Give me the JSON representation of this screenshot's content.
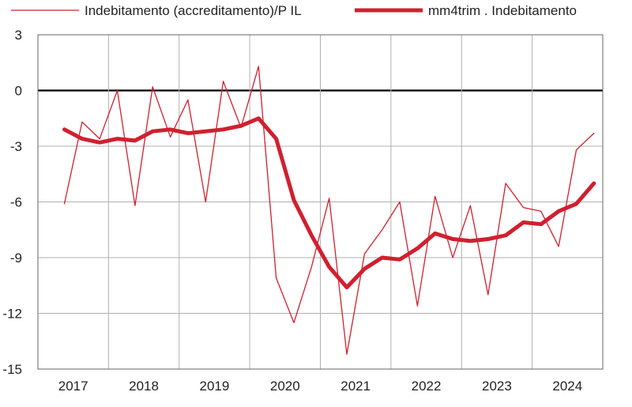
{
  "chart_data": {
    "type": "line",
    "title": "",
    "xlabel": "",
    "ylabel": "",
    "ylim": [
      -15,
      3
    ],
    "yticks": [
      3,
      0,
      -3,
      -6,
      -9,
      -12,
      -15
    ],
    "year_labels": [
      "2017",
      "2018",
      "2019",
      "2020",
      "2021",
      "2022",
      "2023",
      "2024"
    ],
    "grid": true,
    "legend_position": "top",
    "colors": {
      "series": "#d0202f",
      "zero_line": "#000000",
      "grid": "#b0b0b0",
      "frame": "#666666"
    },
    "x": [
      "2017-Q1",
      "2017-Q2",
      "2017-Q3",
      "2017-Q4",
      "2018-Q1",
      "2018-Q2",
      "2018-Q3",
      "2018-Q4",
      "2019-Q1",
      "2019-Q2",
      "2019-Q3",
      "2019-Q4",
      "2020-Q1",
      "2020-Q2",
      "2020-Q3",
      "2020-Q4",
      "2021-Q1",
      "2021-Q2",
      "2021-Q3",
      "2021-Q4",
      "2022-Q1",
      "2022-Q2",
      "2022-Q3",
      "2022-Q4",
      "2023-Q1",
      "2023-Q2",
      "2023-Q3",
      "2023-Q4",
      "2024-Q1",
      "2024-Q2",
      "2024-Q3"
    ],
    "series": [
      {
        "name": "Indebitamento (accreditamento)/P IL",
        "values": [
          -6.1,
          -1.7,
          -2.6,
          0.0,
          -6.2,
          0.2,
          -2.5,
          -0.5,
          -6.0,
          0.5,
          -2.0,
          1.3,
          -10.1,
          -12.5,
          -9.5,
          -5.8,
          -14.2,
          -8.8,
          -7.5,
          -6.0,
          -11.6,
          -5.7,
          -9.0,
          -6.2,
          -11.0,
          -5.0,
          -6.3,
          -6.5,
          -8.4,
          -3.2,
          -2.3
        ],
        "line_width": 1.3
      },
      {
        "name": "mm4trim . Indebitamento",
        "values": [
          -2.1,
          -2.6,
          -2.8,
          -2.6,
          -2.7,
          -2.2,
          -2.1,
          -2.3,
          -2.2,
          -2.1,
          -1.9,
          -1.5,
          -2.6,
          -5.9,
          -7.8,
          -9.5,
          -10.6,
          -9.6,
          -9.0,
          -9.1,
          -8.5,
          -7.7,
          -8.0,
          -8.1,
          -8.0,
          -7.8,
          -7.1,
          -7.2,
          -6.5,
          -6.1,
          -5.0
        ],
        "line_width": 5
      }
    ]
  }
}
